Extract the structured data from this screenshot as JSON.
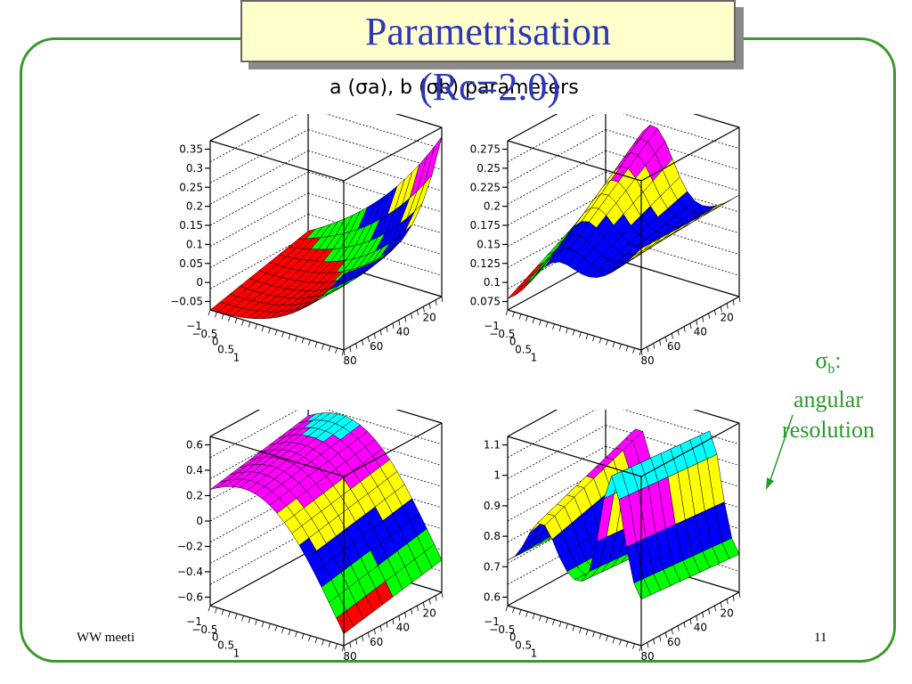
{
  "slide": {
    "title": "Parametrisation",
    "subtitle": "(Rc=2.0)",
    "footer_left": "WW meeti",
    "page_number": "11",
    "annotation": {
      "symbol": "σ",
      "subscript": "b",
      "suffix": ":",
      "line1": "angular",
      "line2": "resolution"
    },
    "colors": {
      "title": "#2b35b8",
      "title_bg": "#ffffcc",
      "frame": "#3a9a2a",
      "annotation": "#2a9a2a"
    }
  },
  "chart_data": [
    {
      "type": "surface3d",
      "title": "a (σa), b (σb) parameters",
      "position": "top-left",
      "z_ticks": [
        "0.35",
        "0.3",
        "0.25",
        "0.2",
        "0.15",
        "0.1",
        "0.05",
        "0",
        "−0.05"
      ],
      "x_ticks": [
        "−1",
        "−0.5",
        "0",
        "0.5",
        "1"
      ],
      "y_ticks": [
        "80",
        "60",
        "40",
        "20"
      ],
      "band_colors": [
        "#ff0000",
        "#00ff00",
        "#0000ff",
        "#ffff00",
        "#ff00ff",
        "#00ffff"
      ]
    },
    {
      "type": "surface3d",
      "position": "top-right",
      "z_ticks": [
        "0.275",
        "0.25",
        "0.225",
        "0.2",
        "0.175",
        "0.15",
        "0.125",
        "0.1",
        "0.075"
      ],
      "x_ticks": [
        "−1",
        "−0.5",
        "0",
        "0.5",
        "1"
      ],
      "y_ticks": [
        "80",
        "60",
        "40",
        "20"
      ],
      "band_colors": [
        "#ff0000",
        "#00ff00",
        "#0000ff",
        "#ffff00",
        "#ff00ff",
        "#00ffff"
      ]
    },
    {
      "type": "surface3d",
      "position": "bottom-left",
      "z_ticks": [
        "0.6",
        "0.4",
        "0.2",
        "0",
        "−0.2",
        "−0.4",
        "−0.6"
      ],
      "x_ticks": [
        "−1",
        "−0.5",
        "0",
        "0.5",
        "1"
      ],
      "y_ticks": [
        "80",
        "60",
        "40",
        "20"
      ],
      "band_colors": [
        "#ff0000",
        "#00ff00",
        "#0000ff",
        "#ffff00",
        "#ff00ff",
        "#00ffff"
      ]
    },
    {
      "type": "surface3d",
      "position": "bottom-right",
      "z_ticks": [
        "1.1",
        "1",
        "0.9",
        "0.8",
        "0.7",
        "0.6"
      ],
      "x_ticks": [
        "−1",
        "−0.5",
        "0",
        "0.5",
        "1"
      ],
      "y_ticks": [
        "80",
        "60",
        "40",
        "20"
      ],
      "band_colors": [
        "#ff0000",
        "#00ff00",
        "#0000ff",
        "#ffff00",
        "#ff00ff",
        "#00ffff"
      ]
    }
  ]
}
